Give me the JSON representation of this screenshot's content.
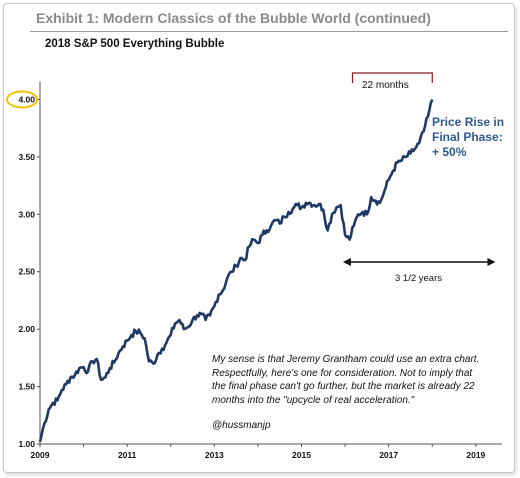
{
  "header": {
    "exhibit_title": "Exhibit 1: Modern Classics of the Bubble World (continued)"
  },
  "chart_data": {
    "type": "line",
    "title": "2018 S&P 500 Everything Bubble",
    "xlabel": "",
    "ylabel": "",
    "xlim": [
      2009.0,
      2019.6
    ],
    "ylim": [
      1.0,
      4.1
    ],
    "x_ticks": [
      "2009",
      "2011",
      "2013",
      "2015",
      "2017",
      "2019"
    ],
    "y_ticks": [
      "1.00",
      "1.50",
      "2.00",
      "2.50",
      "3.00",
      "3.50",
      "4.00"
    ],
    "highlighted_tick": "4.00",
    "grid": false,
    "series": [
      {
        "color": "#1f3864",
        "x": [
          2009.0,
          2009.1,
          2009.2,
          2009.3,
          2009.4,
          2009.5,
          2009.6,
          2009.7,
          2009.8,
          2009.9,
          2010.0,
          2010.1,
          2010.2,
          2010.3,
          2010.4,
          2010.5,
          2010.6,
          2010.7,
          2010.8,
          2010.9,
          2011.0,
          2011.1,
          2011.2,
          2011.3,
          2011.4,
          2011.5,
          2011.6,
          2011.7,
          2011.8,
          2011.9,
          2012.0,
          2012.1,
          2012.2,
          2012.3,
          2012.4,
          2012.5,
          2012.6,
          2012.7,
          2012.8,
          2012.9,
          2013.0,
          2013.1,
          2013.2,
          2013.3,
          2013.4,
          2013.5,
          2013.6,
          2013.7,
          2013.8,
          2013.9,
          2014.0,
          2014.1,
          2014.2,
          2014.3,
          2014.4,
          2014.5,
          2014.6,
          2014.7,
          2014.8,
          2014.9,
          2015.0,
          2015.1,
          2015.2,
          2015.3,
          2015.4,
          2015.5,
          2015.6,
          2015.7,
          2015.8,
          2015.9,
          2016.0,
          2016.1,
          2016.2,
          2016.3,
          2016.4,
          2016.5,
          2016.6,
          2016.7,
          2016.8,
          2016.9,
          2017.0,
          2017.1,
          2017.2,
          2017.3,
          2017.4,
          2017.5,
          2017.6,
          2017.7,
          2017.8,
          2017.9,
          2018.0
        ],
        "values": [
          1.02,
          1.18,
          1.3,
          1.36,
          1.38,
          1.47,
          1.52,
          1.58,
          1.6,
          1.66,
          1.67,
          1.63,
          1.72,
          1.74,
          1.56,
          1.58,
          1.66,
          1.71,
          1.79,
          1.85,
          1.9,
          1.95,
          1.98,
          1.97,
          1.92,
          1.72,
          1.7,
          1.78,
          1.83,
          1.88,
          1.95,
          2.05,
          2.08,
          2.0,
          2.02,
          2.08,
          2.12,
          2.13,
          2.08,
          2.12,
          2.2,
          2.3,
          2.34,
          2.45,
          2.5,
          2.55,
          2.62,
          2.6,
          2.72,
          2.78,
          2.75,
          2.82,
          2.86,
          2.9,
          2.95,
          2.92,
          2.98,
          3.02,
          3.05,
          3.08,
          3.06,
          3.1,
          3.1,
          3.08,
          3.09,
          3.04,
          2.86,
          3.0,
          3.06,
          3.08,
          2.82,
          2.78,
          2.9,
          3.0,
          3.02,
          3.0,
          3.15,
          3.12,
          3.1,
          3.2,
          3.3,
          3.38,
          3.45,
          3.47,
          3.5,
          3.53,
          3.57,
          3.62,
          3.72,
          3.85,
          4.0
        ]
      }
    ]
  },
  "annotations": {
    "months_label": "22 months",
    "years_label": "3 1/2 years",
    "price_rise": [
      "Price Rise in",
      "Final Phase:",
      "+ 50%"
    ],
    "comment_lines": [
      "My sense is that Jeremy Grantham could use an extra chart.",
      "Respectfully, here's one for consideration. Not to imply that",
      "the final phase can't go further, but the market is already 22",
      "months into the \"upcycle of real acceleration.\""
    ],
    "handle": "@hussmanjp"
  },
  "colors": {
    "line": "#1f3864",
    "bracket": "#8b1a1a",
    "highlight": "#f2c200",
    "annotation_blue": "#2e5a8c",
    "title_gray": "#8a8a8a"
  }
}
